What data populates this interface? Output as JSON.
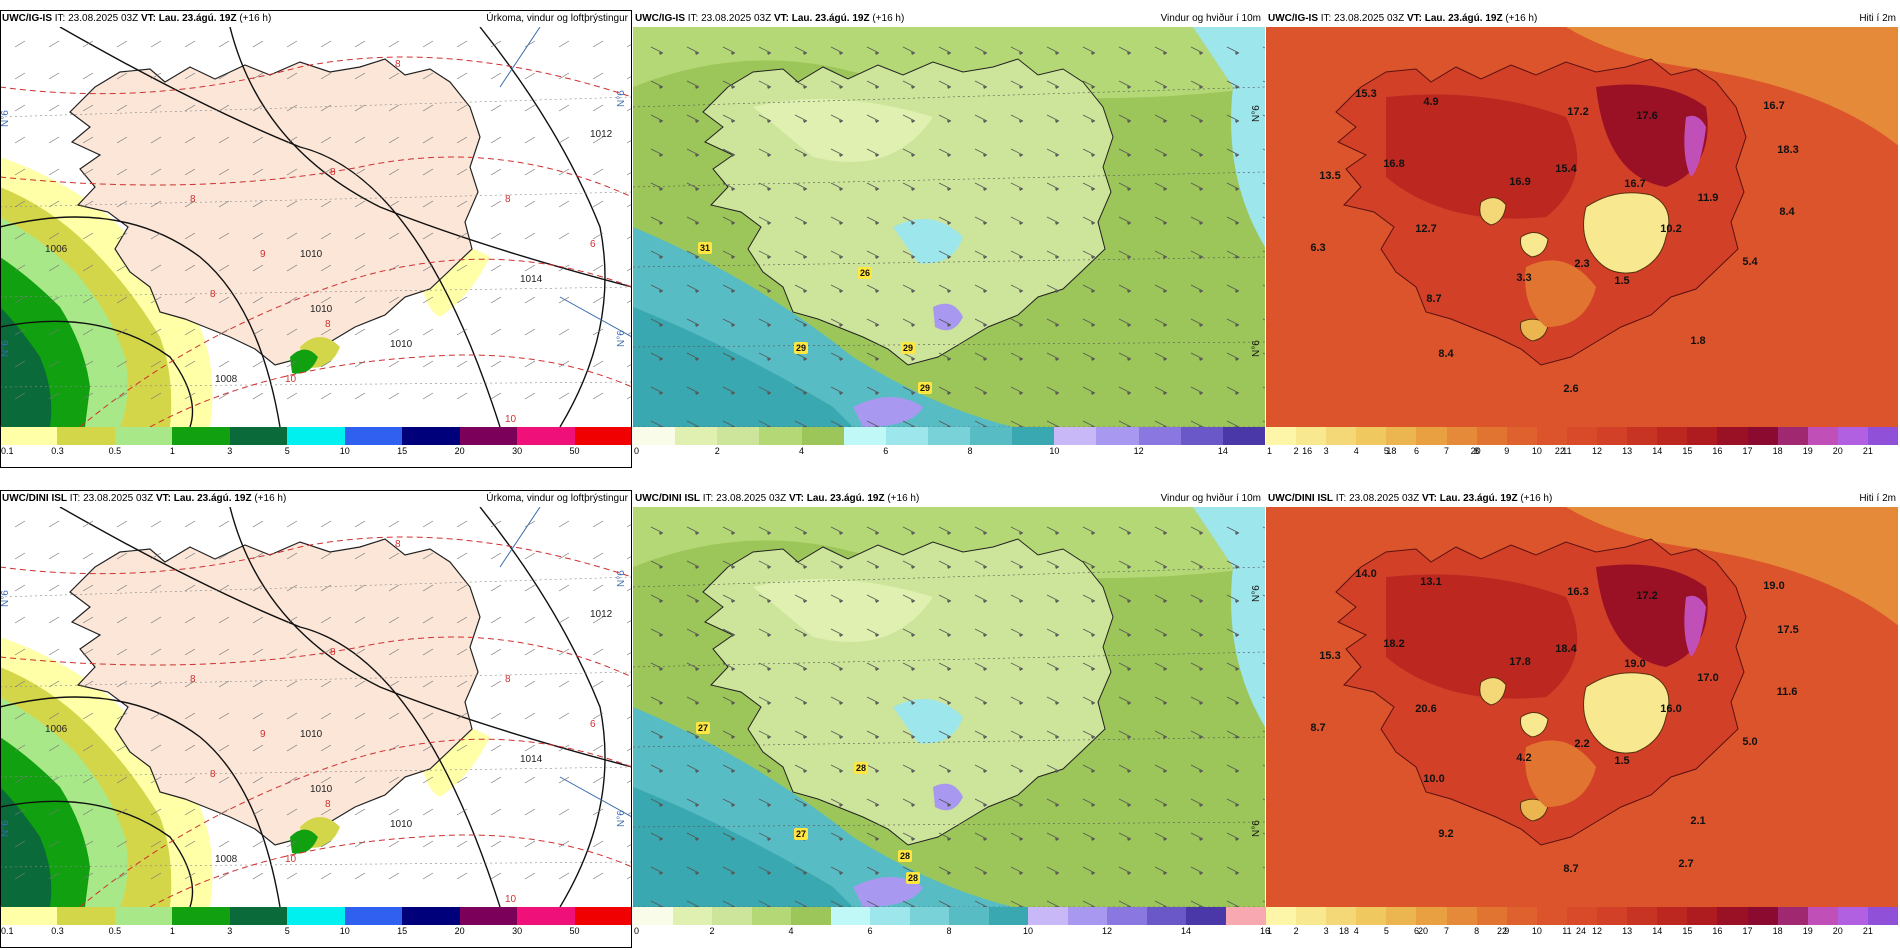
{
  "rows": [
    {
      "model": "UWC/IG-IS",
      "panels": [
        {
          "title": "Úrkoma, vindur og loftþrýstingur",
          "kind": "precip",
          "isobars": [
            "1010",
            "1012",
            "1006",
            "1014",
            "1010",
            "1008",
            "1010"
          ],
          "red_labels": [
            "8",
            "8",
            "8",
            "9",
            "8",
            "10",
            "6",
            "8",
            "10",
            "8"
          ]
        },
        {
          "title": "Vindur og hviður í 10m",
          "kind": "wind",
          "gusts": [
            "31",
            "26",
            "29",
            "29",
            "29"
          ]
        },
        {
          "title": "Hiti í 2m",
          "kind": "temp",
          "temps": [
            "15.3",
            "4.9",
            "17.2",
            "17.6",
            "16.7",
            "13.5",
            "16.8",
            "15.4",
            "16.9",
            "16.7",
            "18.3",
            "11.9",
            "12.7",
            "10.2",
            "8.4",
            "6.3",
            "3.3",
            "2.3",
            "5.4",
            "8.7",
            "1.5",
            "8.4",
            "1.8",
            "2.6"
          ]
        }
      ]
    },
    {
      "model": "UWC/DINI ISL",
      "panels": [
        {
          "title": "Úrkoma, vindur og loftþrýstingur",
          "kind": "precip",
          "isobars": [
            "1010",
            "1012",
            "1006",
            "1014",
            "1010",
            "1008",
            "1010"
          ],
          "red_labels": [
            "8",
            "8",
            "8",
            "9",
            "8",
            "10",
            "6",
            "8",
            "10",
            "8"
          ]
        },
        {
          "title": "Vindur og hviður í 10m",
          "kind": "wind",
          "gusts": [
            "27",
            "28",
            "27",
            "28",
            "28"
          ]
        },
        {
          "title": "Hiti í 2m",
          "kind": "temp",
          "temps": [
            "14.0",
            "13.1",
            "16.3",
            "17.2",
            "19.0",
            "15.3",
            "18.2",
            "18.4",
            "17.8",
            "19.0",
            "17.5",
            "17.0",
            "20.6",
            "16.0",
            "11.6",
            "8.7",
            "4.2",
            "2.2",
            "5.0",
            "10.0",
            "1.5",
            "9.2",
            "2.1",
            "8.7",
            "2.7"
          ]
        }
      ]
    }
  ],
  "header": {
    "it_label": "IT:",
    "it_value": "23.08.2025 03Z",
    "vt_label": "VT:",
    "vt_value": "Lau. 23.ágú. 19Z",
    "lead": "(+16 h)"
  },
  "lat_label": "N°6",
  "colorbars": {
    "precip": {
      "colors": [
        "#ffffa8",
        "#d4d64a",
        "#a8e888",
        "#10a010",
        "#0a6a3a",
        "#00f0f0",
        "#3060f0",
        "#00007a",
        "#7a005a",
        "#f0107a",
        "#f00000"
      ],
      "ticks": [
        "0.1",
        "0.3",
        "0.5",
        "1",
        "3",
        "5",
        "10",
        "15",
        "20",
        "30",
        "50"
      ]
    },
    "wind_top": {
      "colors": [
        "#f8fce8",
        "#e0f0b0",
        "#cde59a",
        "#b5d876",
        "#9cc65a",
        "#c0f8f8",
        "#9ce6ec",
        "#78d2d8",
        "#58bcc4",
        "#3aa8b0",
        "#c8b8f8",
        "#a898f0",
        "#8a78e0",
        "#6a58c8",
        "#4a38a8"
      ],
      "ticks": [
        "0",
        "2",
        "4",
        "6",
        "8",
        "10",
        "12",
        "14",
        "16",
        "18",
        "20",
        "22"
      ]
    },
    "wind_bottom": {
      "colors": [
        "#f8fce8",
        "#e0f0b0",
        "#cde59a",
        "#b5d876",
        "#9cc65a",
        "#c0f8f8",
        "#9ce6ec",
        "#78d2d8",
        "#58bcc4",
        "#3aa8b0",
        "#c8b8f8",
        "#a898f0",
        "#8a78e0",
        "#6a58c8",
        "#4a38a8",
        "#f8a8b0"
      ],
      "ticks": [
        "0",
        "2",
        "4",
        "6",
        "8",
        "10",
        "12",
        "14",
        "16",
        "18",
        "20",
        "22",
        "24"
      ]
    },
    "temp": {
      "colors": [
        "#fdf5a8",
        "#f8e890",
        "#f4d878",
        "#efc860",
        "#ebb650",
        "#e8a040",
        "#e58a38",
        "#e27432",
        "#df622e",
        "#dc542c",
        "#d84a2a",
        "#d24028",
        "#c83424",
        "#bc2820",
        "#ae1c20",
        "#9a1024",
        "#8a0a30",
        "#a02870",
        "#c050b8",
        "#b060e0",
        "#9050d8"
      ],
      "ticks": [
        "1",
        "2",
        "3",
        "4",
        "5",
        "6",
        "7",
        "8",
        "9",
        "10",
        "11",
        "12",
        "13",
        "14",
        "15",
        "16",
        "17",
        "18",
        "19",
        "20",
        "21"
      ]
    }
  }
}
